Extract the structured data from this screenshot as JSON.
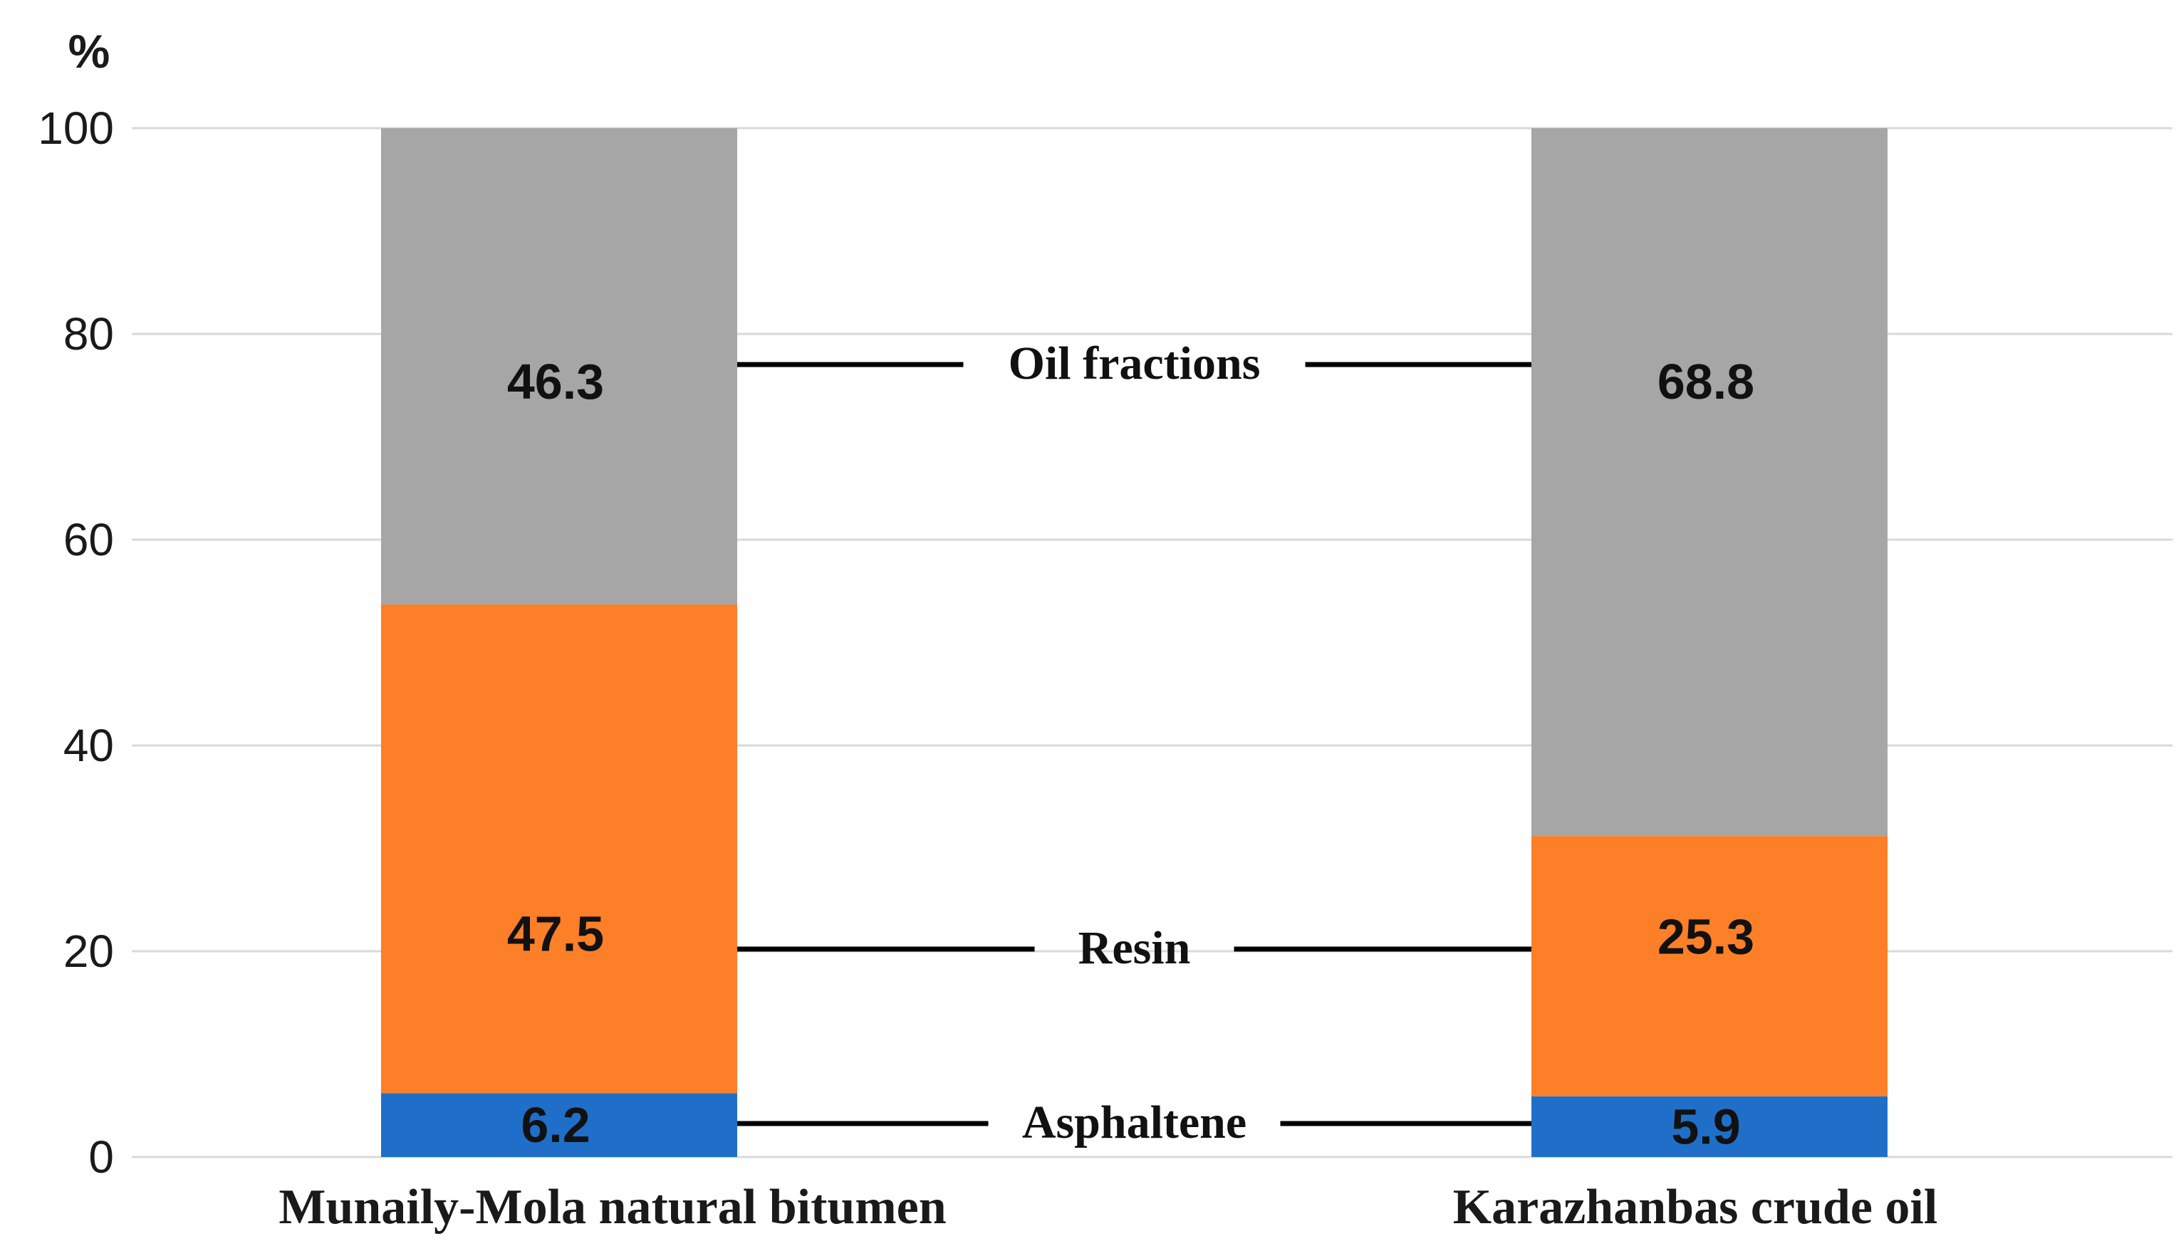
{
  "chart_data": {
    "type": "bar",
    "stacked": true,
    "ylabel": "%",
    "ylim": [
      0,
      100
    ],
    "yticks": [
      0,
      20,
      40,
      60,
      80,
      100
    ],
    "grid": true,
    "categories": [
      "Munaily-Mola natural bitumen",
      "Karazhanbas crude oil"
    ],
    "series": [
      {
        "name": "Asphaltene",
        "values": [
          6.2,
          5.9
        ],
        "labels": [
          "6.2",
          "5.9"
        ],
        "color": "#1f6fc9"
      },
      {
        "name": "Resin",
        "values": [
          47.5,
          25.3
        ],
        "labels": [
          "47.5",
          "25.3"
        ],
        "color": "#fd7f28"
      },
      {
        "name": "Oil fractions",
        "values": [
          46.3,
          68.8
        ],
        "labels": [
          "46.3",
          "68.8"
        ],
        "color": "#a6a6a6"
      }
    ]
  }
}
